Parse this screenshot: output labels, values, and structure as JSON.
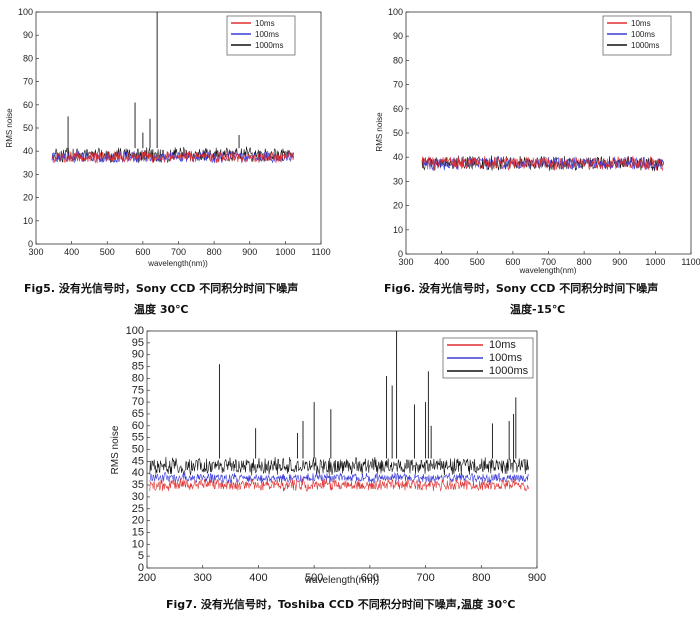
{
  "chart_data": [
    {
      "type": "line",
      "xlabel": "wavelength(nm))",
      "ylabel": "RMS noise",
      "xlim": [
        300,
        1100
      ],
      "ylim": [
        0,
        100
      ],
      "xticks": [
        300,
        400,
        500,
        600,
        700,
        800,
        900,
        1000,
        1100
      ],
      "yticks": [
        0,
        10,
        20,
        30,
        40,
        50,
        60,
        70,
        80,
        90,
        100
      ],
      "legend_position": "top-right",
      "series": [
        {
          "name": "10ms",
          "color": "#e03030",
          "base": 37.5,
          "amp": 2.2,
          "spikes": []
        },
        {
          "name": "100ms",
          "color": "#3a3ad8",
          "base": 37.5,
          "amp": 2.2,
          "spikes": []
        },
        {
          "name": "1000ms",
          "color": "#111111",
          "base": 38.5,
          "amp": 2.8,
          "spikes": [
            [
              390,
              55
            ],
            [
              578,
              61
            ],
            [
              600,
              48
            ],
            [
              620,
              54
            ],
            [
              640,
              100
            ],
            [
              870,
              47
            ]
          ]
        }
      ],
      "x_range": [
        345,
        1025
      ],
      "caption_line1": "Fig5. 没有光信号时，Sony CCD 不同积分时间下噪声",
      "caption_line2": "温度 30℃"
    },
    {
      "type": "line",
      "xlabel": "wavelength(nm)",
      "ylabel": "RMS noise",
      "xlim": [
        300,
        1100
      ],
      "ylim": [
        0,
        100
      ],
      "xticks": [
        300,
        400,
        500,
        600,
        700,
        800,
        900,
        1000,
        1100
      ],
      "yticks": [
        0,
        10,
        20,
        30,
        40,
        50,
        60,
        70,
        80,
        90,
        100
      ],
      "legend_position": "top-right",
      "series": [
        {
          "name": "10ms",
          "color": "#e03030",
          "base": 37.5,
          "amp": 2.4,
          "spikes": []
        },
        {
          "name": "100ms",
          "color": "#3a3ad8",
          "base": 37.5,
          "amp": 2.4,
          "spikes": []
        },
        {
          "name": "1000ms",
          "color": "#111111",
          "base": 37.5,
          "amp": 2.6,
          "spikes": []
        }
      ],
      "x_range": [
        345,
        1025
      ],
      "caption_line1": "Fig6. 没有光信号时，Sony CCD 不同积分时间下噪声",
      "caption_line2": "温度-15℃"
    },
    {
      "type": "line",
      "xlabel": "wavelength(nm))",
      "ylabel": "RMS noise",
      "xlim": [
        200,
        900
      ],
      "ylim": [
        0,
        100
      ],
      "xticks": [
        200,
        300,
        400,
        500,
        600,
        700,
        800,
        900
      ],
      "yticks": [
        0,
        5,
        10,
        15,
        20,
        25,
        30,
        35,
        40,
        45,
        50,
        55,
        60,
        65,
        70,
        75,
        80,
        85,
        90,
        95,
        100
      ],
      "legend_position": "top-right",
      "series": [
        {
          "name": "10ms",
          "color": "#e03030",
          "base": 35,
          "amp": 2.2,
          "spikes": []
        },
        {
          "name": "100ms",
          "color": "#3a3ad8",
          "base": 38,
          "amp": 1.8,
          "spikes": []
        },
        {
          "name": "1000ms",
          "color": "#111111",
          "base": 43,
          "amp": 3.2,
          "spikes": [
            [
              330,
              86
            ],
            [
              395,
              59
            ],
            [
              470,
              57
            ],
            [
              480,
              62
            ],
            [
              500,
              70
            ],
            [
              530,
              67
            ],
            [
              630,
              81
            ],
            [
              640,
              77
            ],
            [
              648,
              100
            ],
            [
              680,
              69
            ],
            [
              700,
              70
            ],
            [
              705,
              83
            ],
            [
              710,
              60
            ],
            [
              820,
              61
            ],
            [
              850,
              62
            ],
            [
              858,
              65
            ],
            [
              862,
              72
            ]
          ]
        }
      ],
      "x_range": [
        205,
        885
      ],
      "caption_line1": "Fig7. 没有光信号时，Toshiba CCD 不同积分时间下噪声,温度 30℃"
    }
  ]
}
